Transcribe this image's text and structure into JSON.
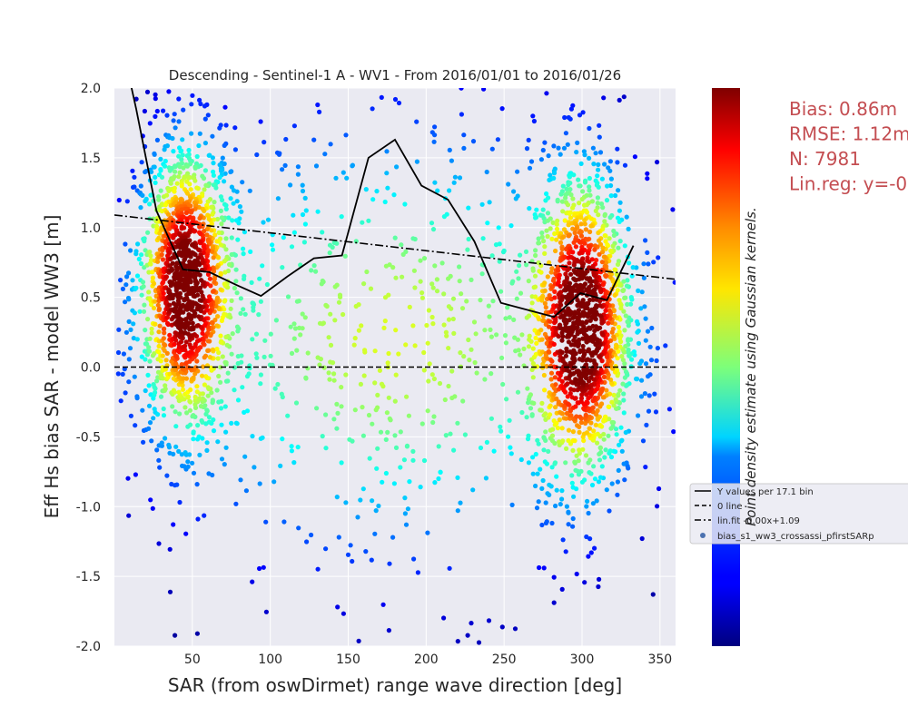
{
  "chart_data": {
    "type": "scatter",
    "title": "Descending - Sentinel-1 A - WV1 - From 2016/01/01 to 2016/01/26",
    "xlabel": "SAR (from oswDirmet) range wave direction [deg]",
    "ylabel": "Eff Hs bias SAR - model WW3 [m]",
    "xlim": [
      0,
      360
    ],
    "ylim": [
      -2.0,
      2.0
    ],
    "xticks": [
      50,
      100,
      150,
      200,
      250,
      300,
      350
    ],
    "yticks": [
      -2.0,
      -1.5,
      -1.0,
      -0.5,
      0.0,
      0.5,
      1.0,
      1.5,
      2.0
    ],
    "grid": true,
    "colorbar_label": "Point density estimate using Gaussian kernels.",
    "colormap": "jet",
    "stats": [
      "Bias: 0.86m",
      "RMSE: 1.12m",
      "N: 7981",
      "Lin.reg: y=-0"
    ],
    "legend": {
      "placement": "right",
      "entries": [
        "Y values per 17.1 bin",
        "0 line",
        "lin.fit -0.00x+1.09",
        "bias_s1_ww3_crossassi_pfirstSARp"
      ]
    },
    "binned_mean": {
      "name": "Y values per 17.1 bin",
      "x": [
        10,
        14,
        27,
        44,
        61,
        78,
        94,
        111,
        128,
        146,
        163,
        180,
        197,
        214,
        231,
        248,
        282,
        299,
        316,
        333
      ],
      "y": [
        2.05,
        1.85,
        1.12,
        0.7,
        0.68,
        0.59,
        0.51,
        0.65,
        0.78,
        0.8,
        1.5,
        1.63,
        1.3,
        1.2,
        0.9,
        0.46,
        0.36,
        0.53,
        0.48,
        0.87
      ]
    },
    "zero_line": {
      "name": "0 line",
      "y": 0.0
    },
    "lin_fit": {
      "name": "lin.fit -0.00x+1.09",
      "slope": -0.00128,
      "intercept": 1.09
    },
    "density_clusters": [
      {
        "x_center": 45,
        "y_center": 0.6,
        "x_spread": 16,
        "y_spread": 0.55,
        "n": 1500
      },
      {
        "x_center": 300,
        "y_center": 0.3,
        "x_spread": 17,
        "y_spread": 0.6,
        "n": 1500
      },
      {
        "x_center": 180,
        "y_center": 0.2,
        "x_spread": 95,
        "y_spread": 0.9,
        "n": 750
      }
    ],
    "colors": {
      "plot_bg": "#eaeaf2",
      "grid": "#ffffff",
      "line": "#000000",
      "stats_text": "#c44e52",
      "legend_marker": "#4c72b0"
    }
  }
}
